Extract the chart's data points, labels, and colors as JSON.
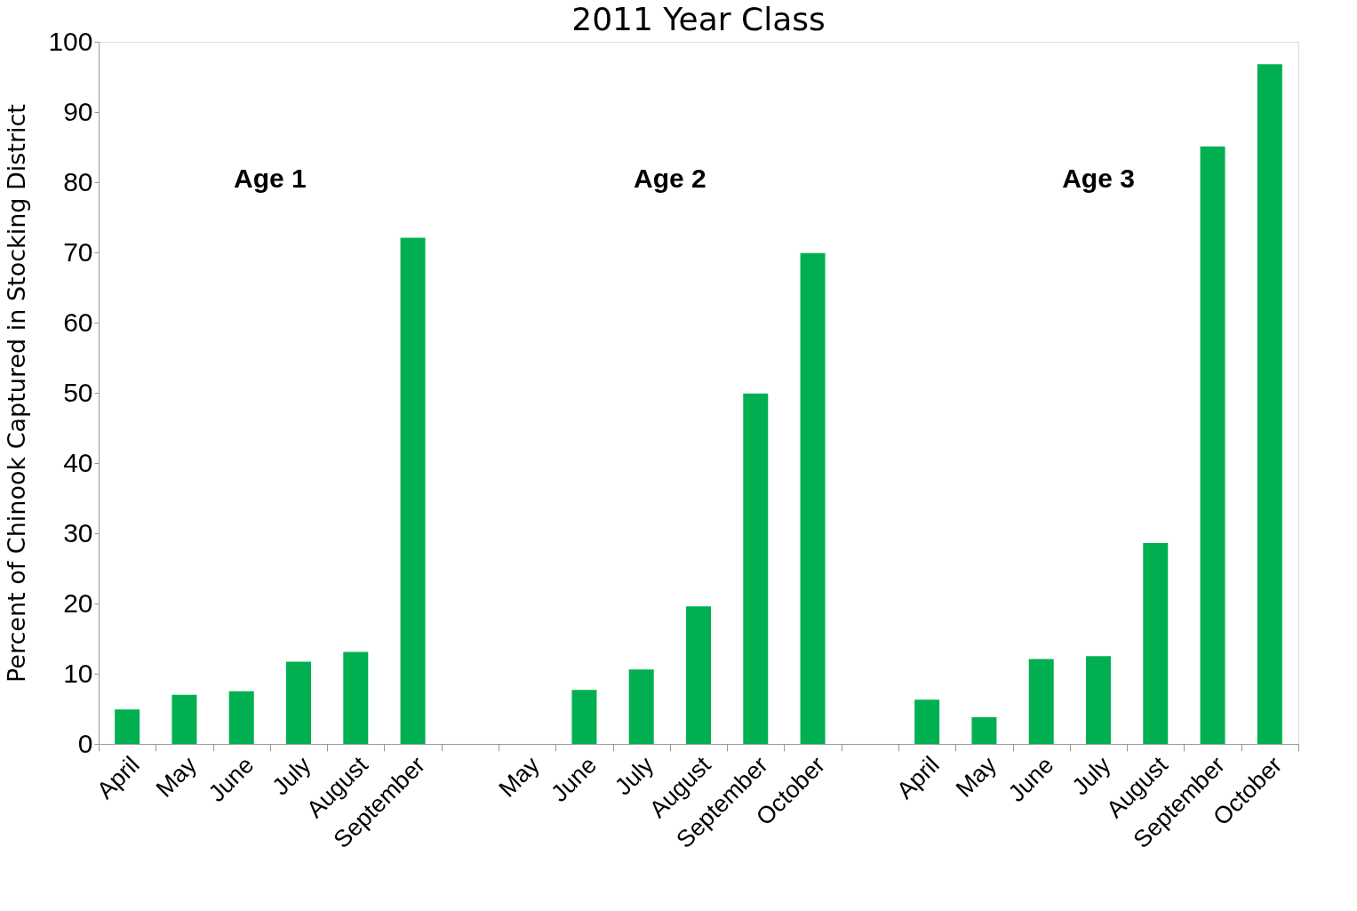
{
  "chart_data": {
    "type": "bar",
    "title": "2011 Year Class",
    "ylabel": "Percent of Chinook Captured in Stocking District",
    "categories": [
      "April",
      "May",
      "June",
      "July",
      "August",
      "September",
      null,
      "May",
      "June",
      "July",
      "August",
      "September",
      "October",
      null,
      "April",
      "May",
      "June",
      "July",
      "August",
      "September",
      "October"
    ],
    "values": [
      4.9,
      7.0,
      7.5,
      11.7,
      13.1,
      72.1,
      null,
      0,
      7.7,
      10.6,
      19.6,
      49.9,
      69.9,
      null,
      6.3,
      3.8,
      12.1,
      12.5,
      28.6,
      85.1,
      96.8
    ],
    "color": "#00b050",
    "ylim": [
      0,
      100
    ],
    "yticks": [
      0,
      10,
      20,
      30,
      40,
      50,
      60,
      70,
      80,
      90,
      100
    ],
    "annotations": [
      "Age 1",
      "Age 2",
      "Age 3"
    ]
  }
}
